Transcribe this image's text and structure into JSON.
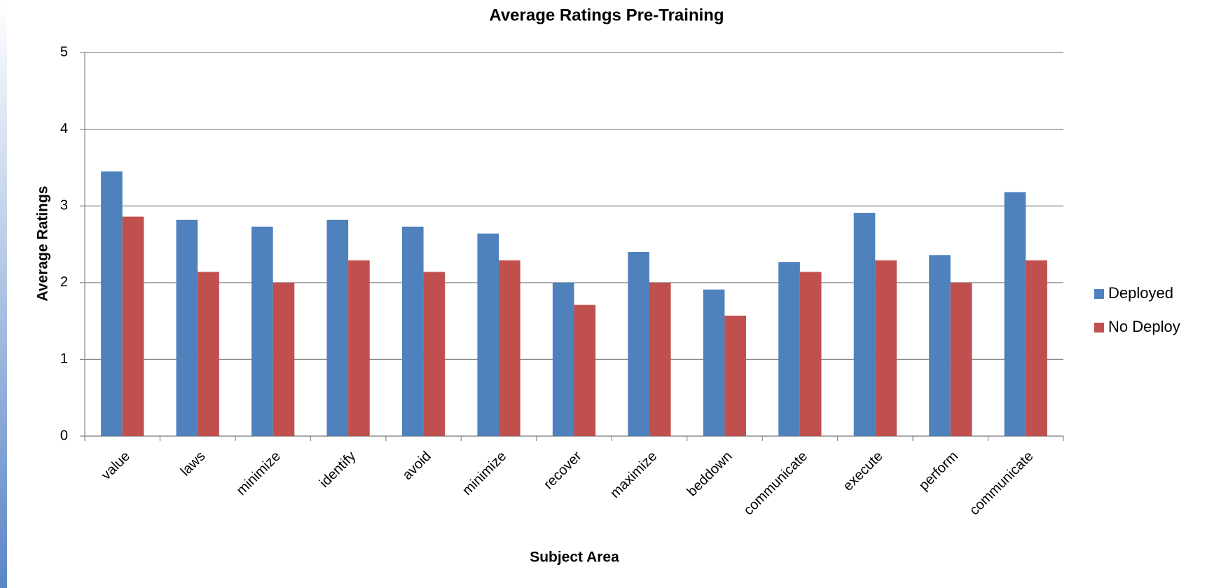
{
  "chart_data": {
    "type": "bar",
    "title": "Average Ratings Pre-Training",
    "x_label": "Subject Area",
    "y_label": "Average Ratings",
    "categories": [
      "value",
      "laws",
      "minimize",
      "identify",
      "avoid",
      "minimize",
      "recover",
      "maximize",
      "beddown",
      "communicate",
      "execute",
      "perform",
      "communicate"
    ],
    "series": [
      {
        "name": "Deployed",
        "color": "#4f81bd",
        "values": [
          3.45,
          2.82,
          2.73,
          2.82,
          2.73,
          2.64,
          2.0,
          2.4,
          1.91,
          2.27,
          2.91,
          2.36,
          3.18
        ]
      },
      {
        "name": "No Deploy",
        "color": "#c0504d",
        "values": [
          2.86,
          2.14,
          2.0,
          2.29,
          2.14,
          2.29,
          1.71,
          2.0,
          1.57,
          2.14,
          2.29,
          2.0,
          2.29
        ]
      }
    ],
    "ylim": [
      0,
      5
    ],
    "yticks": [
      0,
      1,
      2,
      3,
      4,
      5
    ],
    "grid": true,
    "legend": "right"
  }
}
